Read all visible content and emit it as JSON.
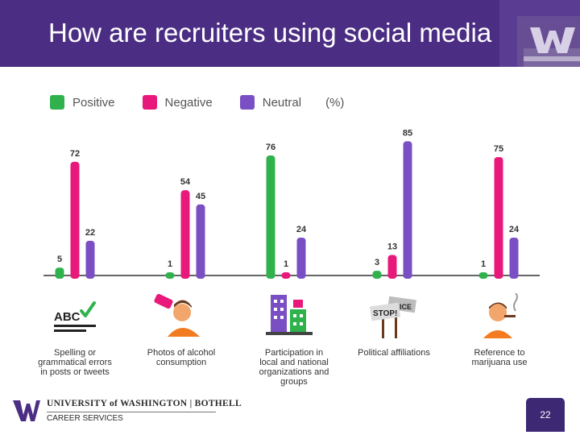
{
  "slide": {
    "title": "How are recruiters using social media",
    "page_number": "22"
  },
  "footer": {
    "org_name": "UNIVERSITY of WASHINGTON | BOTHELL",
    "department": "CAREER SERVICES"
  },
  "chart_data": {
    "type": "bar",
    "title": "",
    "xlabel": "",
    "ylabel": "",
    "unit": "(%)",
    "ylim": [
      0,
      100
    ],
    "grid": false,
    "legend_position": "top-left",
    "categories": [
      "Spelling or grammatical errors in posts or tweets",
      "Photos of alcohol consumption",
      "Participation in local and national organizations and groups",
      "Political affiliations",
      "Reference to marijuana use"
    ],
    "category_lines": [
      [
        "Spelling or",
        "grammatical errors",
        "in posts or tweets"
      ],
      [
        "Photos of alcohol",
        "consumption"
      ],
      [
        "Participation in",
        "local and national",
        "organizations and",
        "groups"
      ],
      [
        "Political affiliations"
      ],
      [
        "Reference to",
        "marijuana use"
      ]
    ],
    "category_icons": [
      "abc-check-icon",
      "drinking-person-icon",
      "buildings-icon",
      "protest-signs-icon",
      "smoking-person-icon"
    ],
    "series": [
      {
        "name": "Positive",
        "color": "#2fb24c",
        "values": [
          5,
          1,
          76,
          3,
          1
        ]
      },
      {
        "name": "Negative",
        "color": "#e8197a",
        "values": [
          72,
          54,
          1,
          13,
          75
        ]
      },
      {
        "name": "Neutral",
        "color": "#7a4fc4",
        "values": [
          22,
          45,
          24,
          85,
          24
        ]
      }
    ]
  }
}
